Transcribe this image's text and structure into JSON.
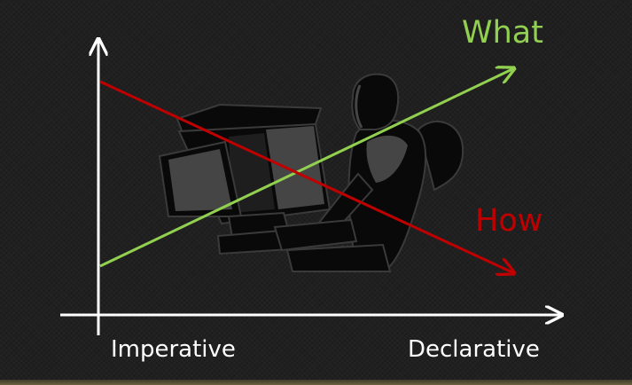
{
  "labels": {
    "what": "What",
    "how": "How",
    "x_left": "Imperative",
    "x_right": "Declarative"
  },
  "colors": {
    "background": "#202020",
    "axes": "#ffffff",
    "what_line": "#92d050",
    "how_line": "#c00000",
    "clipart_fill": "#090909",
    "clipart_shade": "#454545"
  },
  "icons": {
    "clipart": "person-at-computer-icon"
  }
}
